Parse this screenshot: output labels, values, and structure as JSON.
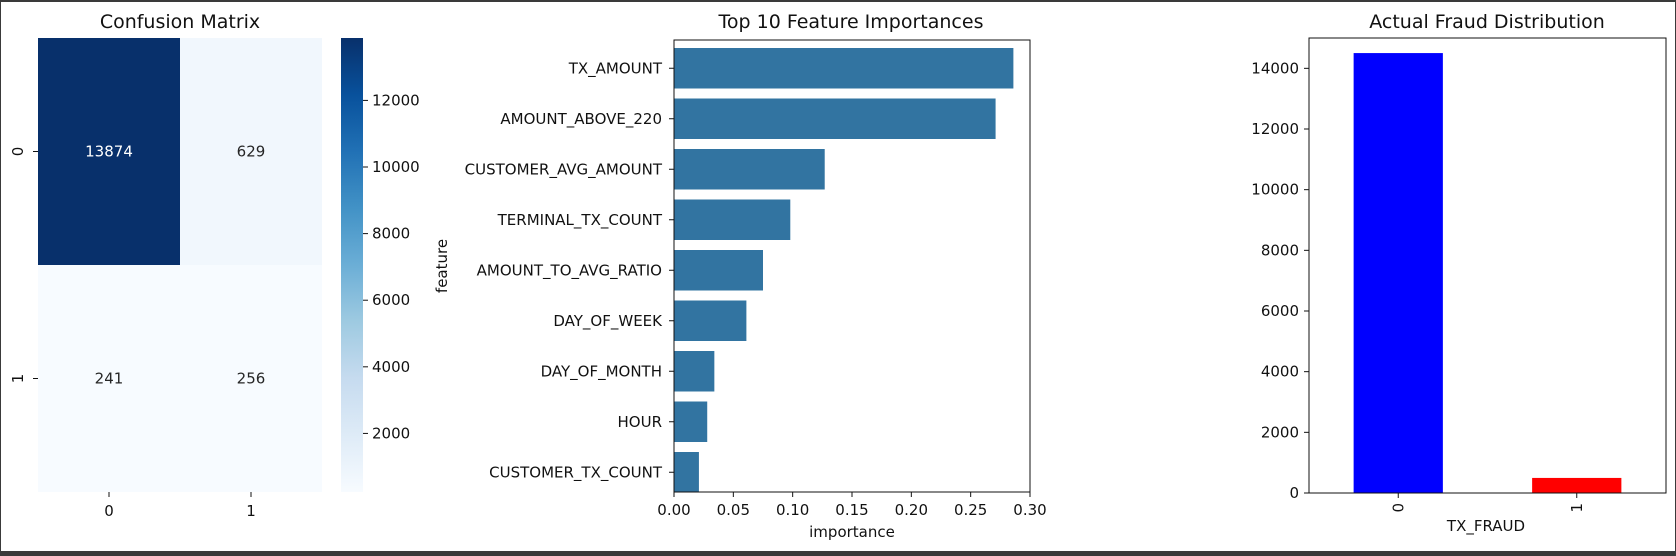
{
  "chart_data": [
    {
      "type": "heatmap",
      "title": "Confusion Matrix",
      "row_labels": [
        "0",
        "1"
      ],
      "col_labels": [
        "0",
        "1"
      ],
      "values": [
        [
          13874,
          629
        ],
        [
          241,
          256
        ]
      ],
      "colormap": "Blues",
      "colorbar": {
        "ticks": [
          2000,
          4000,
          6000,
          8000,
          10000,
          12000
        ],
        "min": 241,
        "max": 13874
      }
    },
    {
      "type": "bar",
      "orientation": "horizontal",
      "title": "Top 10 Feature Importances",
      "xlabel": "importance",
      "ylabel": "feature",
      "categories": [
        "TX_AMOUNT",
        "AMOUNT_ABOVE_220",
        "CUSTOMER_AVG_AMOUNT",
        "TERMINAL_TX_COUNT",
        "AMOUNT_TO_AVG_RATIO",
        "DAY_OF_WEEK",
        "DAY_OF_MONTH",
        "HOUR",
        "CUSTOMER_TX_COUNT"
      ],
      "values": [
        0.286,
        0.271,
        0.127,
        0.098,
        0.075,
        0.061,
        0.034,
        0.028,
        0.021
      ],
      "xlim": [
        0,
        0.3
      ],
      "xticks": [
        "0.00",
        "0.05",
        "0.10",
        "0.15",
        "0.20",
        "0.25",
        "0.30"
      ],
      "color": "#3274a1",
      "grid": false
    },
    {
      "type": "bar",
      "title": "Actual Fraud Distribution",
      "xlabel": "TX_FRAUD",
      "ylabel": "",
      "categories": [
        "0",
        "1"
      ],
      "values": [
        14503,
        497
      ],
      "colors": [
        "#0000ff",
        "#ff0000"
      ],
      "ylim": [
        0,
        15000
      ],
      "yticks": [
        "0",
        "2000",
        "4000",
        "6000",
        "8000",
        "10000",
        "12000",
        "14000"
      ],
      "grid": false
    }
  ]
}
